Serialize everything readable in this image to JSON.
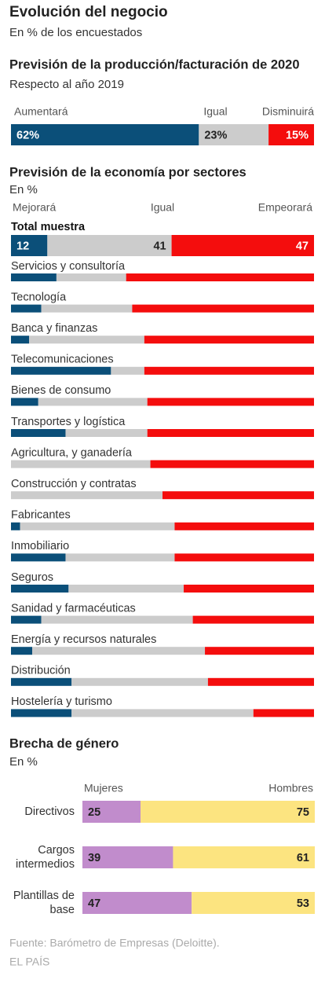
{
  "title": "Evolución del negocio",
  "subtitle": "En % de los encuestados",
  "chart_data": [
    {
      "type": "bar",
      "stacked": true,
      "horizontal": true,
      "title": "Previsión de la producción/facturación de 2020",
      "subtitle": "Respecto al año 2019",
      "categories": [
        null
      ],
      "series": [
        {
          "name": "Aumentará",
          "color": "#0b4f79",
          "values": [
            62
          ],
          "value_labels": [
            "62%"
          ]
        },
        {
          "name": "Igual",
          "color": "#cccccc",
          "values": [
            23
          ],
          "value_labels": [
            "23%"
          ]
        },
        {
          "name": "Disminuirá",
          "color": "#f40d0d",
          "values": [
            15
          ],
          "value_labels": [
            "15%"
          ]
        }
      ]
    },
    {
      "type": "bar",
      "stacked": true,
      "horizontal": true,
      "title": "Previsión de la economía por sectores",
      "subtitle": "En %",
      "categories": [
        "Total muestra",
        "Servicios y consultoría",
        "Tecnología",
        "Banca y finanzas",
        "Telecomunicaciones",
        "Bienes de consumo",
        "Transportes y logística",
        "Agricultura, y ganadería",
        "Construcción y contratas",
        "Fabricantes",
        "Inmobiliario",
        "Seguros",
        "Sanidad y farmacéuticas",
        "Energía y recursos naturales",
        "Distribución",
        "Hostelería y turismo"
      ],
      "series": [
        {
          "name": "Mejorará",
          "color": "#0b4f79",
          "values": [
            12,
            15,
            10,
            6,
            33,
            9,
            18,
            0,
            0,
            3,
            18,
            19,
            10,
            7,
            20,
            20
          ]
        },
        {
          "name": "Igual",
          "color": "#cccccc",
          "values": [
            41,
            23,
            30,
            38,
            11,
            36,
            27,
            46,
            50,
            51,
            36,
            38,
            50,
            57,
            45,
            60
          ]
        },
        {
          "name": "Empeorará",
          "color": "#f40d0d",
          "values": [
            47,
            62,
            60,
            56,
            56,
            55,
            55,
            54,
            50,
            46,
            46,
            43,
            40,
            36,
            35,
            20
          ]
        }
      ]
    },
    {
      "type": "bar",
      "stacked": true,
      "horizontal": true,
      "title": "Brecha de género",
      "subtitle": "En %",
      "categories": [
        "Directivos",
        "Cargos intermedios",
        "Plantillas de base"
      ],
      "series": [
        {
          "name": "Mujeres",
          "color": "#c18ccc",
          "values": [
            25,
            39,
            47
          ]
        },
        {
          "name": "Hombres",
          "color": "#fce480",
          "values": [
            75,
            61,
            53
          ]
        }
      ]
    }
  ],
  "source": "Fuente: Barómetro de Empresas (Deloitte).",
  "credit": "EL PAÍS"
}
